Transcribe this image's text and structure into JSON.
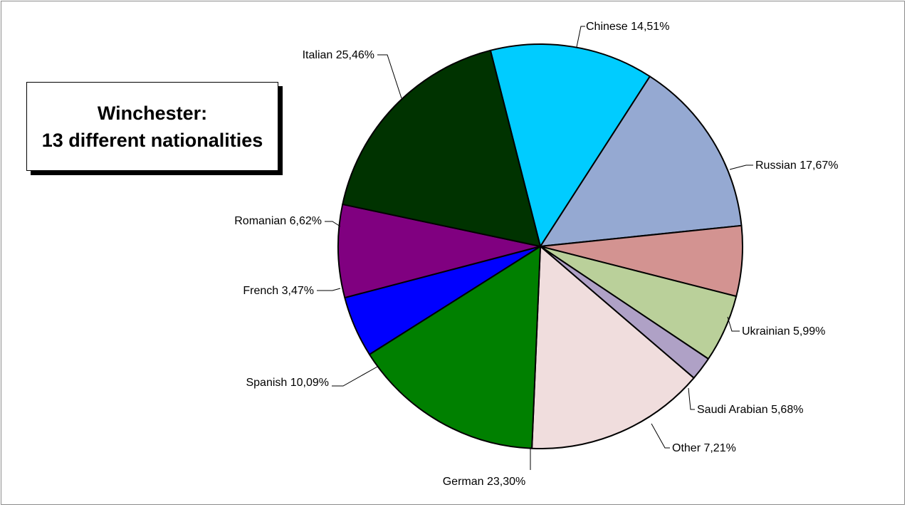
{
  "title": {
    "line1": "Winchester:",
    "line2": "13 different nationalities"
  },
  "chart_data": {
    "type": "pie",
    "title": "Winchester: 13 different nationalities",
    "slices": [
      {
        "label": "Chinese 14,51%",
        "value": 14.51,
        "color": "#00CCFF"
      },
      {
        "label": "Russian 17,67%",
        "value": 17.67,
        "color": "#95A9D2"
      },
      {
        "label": "Ukrainian 5,99%",
        "value": 5.99,
        "color": "#D39391"
      },
      {
        "label": "Saudi Arabian 5,68%",
        "value": 5.68,
        "color": "#BAD09A"
      },
      {
        "label": "Other 7,21%",
        "value": 7.21,
        "color": "#AFA1C6"
      },
      {
        "label": "German 23,30%",
        "value": 23.3,
        "color": "#F0DDDD"
      },
      {
        "label": "Spanish 10,09%",
        "value": 10.09,
        "color": "#008000"
      },
      {
        "label": "French 3,47%",
        "value": 3.47,
        "color": "#0000FF"
      },
      {
        "label": "Romanian 6,62%",
        "value": 6.62,
        "color": "#800080"
      },
      {
        "label": "Italian 25,46%",
        "value": 25.46,
        "color": "#003300"
      }
    ]
  }
}
